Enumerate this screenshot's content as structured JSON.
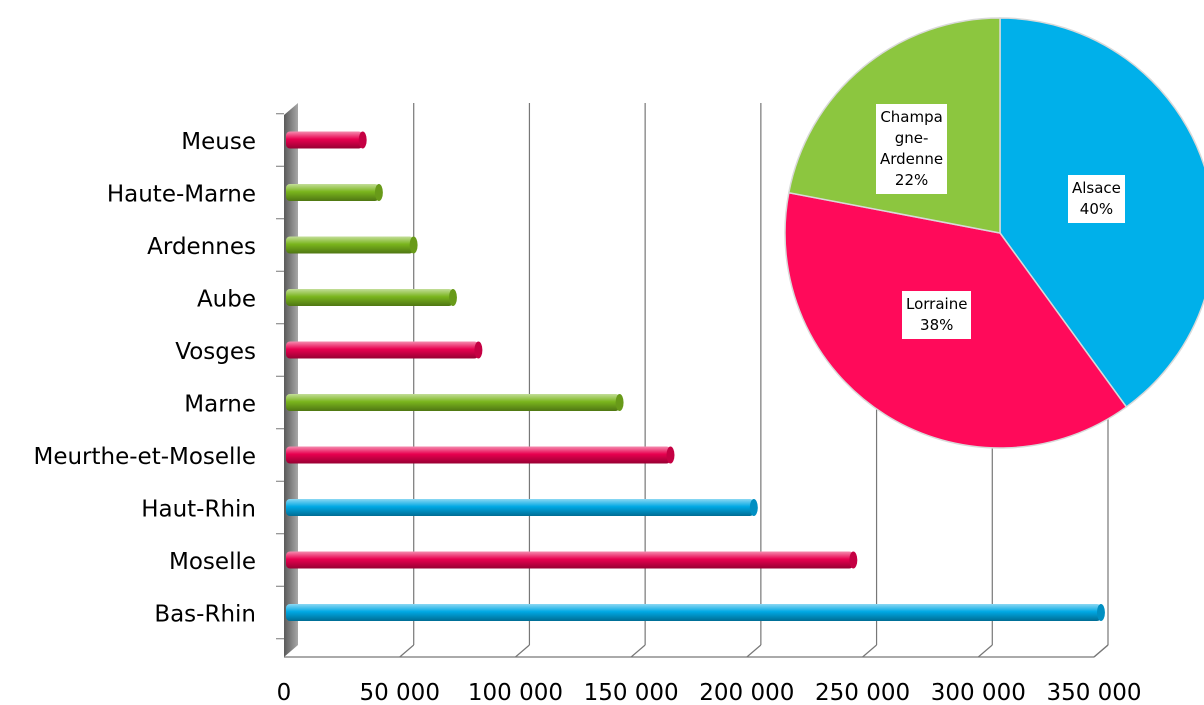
{
  "chart_data": [
    {
      "type": "bar",
      "orientation": "horizontal",
      "categories": [
        "Meuse",
        "Haute-Marne",
        "Ardennes",
        "Aube",
        "Vosges",
        "Marne",
        "Meurthe-et-Moselle",
        "Haut-Rhin",
        "Moselle",
        "Bas-Rhin"
      ],
      "values": [
        34000,
        41000,
        56000,
        73000,
        84000,
        145000,
        167000,
        203000,
        246000,
        353000
      ],
      "bar_colors": [
        "#e8004f",
        "#7ab51d",
        "#7ab51d",
        "#7ab51d",
        "#e8004f",
        "#7ab51d",
        "#e8004f",
        "#00a8e4",
        "#e8004f",
        "#00a8e4"
      ],
      "xlim": [
        0,
        350000
      ],
      "xticks": [
        0,
        50000,
        100000,
        150000,
        200000,
        250000,
        300000,
        350000
      ],
      "xtick_labels": [
        "0",
        "50 000",
        "100 000",
        "150 000",
        "200 000",
        "250 000",
        "300 000",
        "350 000"
      ],
      "grid": "vertical"
    },
    {
      "type": "pie",
      "labels": [
        "Alsace",
        "Lorraine",
        "Champagne-Ardenne"
      ],
      "values": [
        40,
        38,
        22
      ],
      "value_labels": [
        "40%",
        "38%",
        "22%"
      ],
      "colors": [
        "#00b0ea",
        "#ff0a5a",
        "#8cc63f"
      ],
      "label_lines": [
        [
          "Alsace",
          "40%"
        ],
        [
          "Lorraine",
          "38%"
        ],
        [
          "Champa",
          "gne-",
          "Ardenne",
          "22%"
        ]
      ]
    }
  ]
}
